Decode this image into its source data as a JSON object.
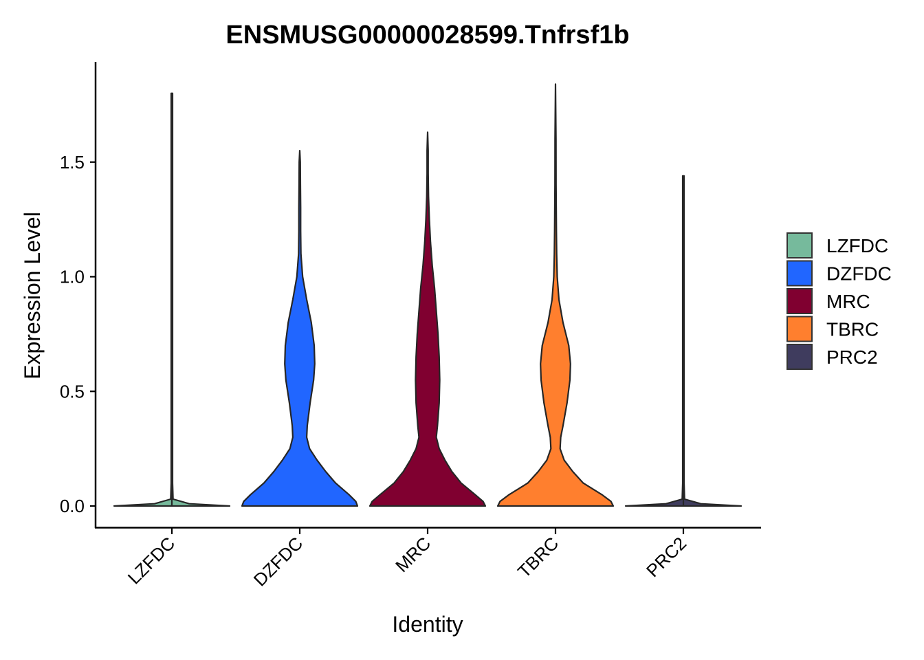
{
  "chart_data": {
    "type": "violin",
    "title": "ENSMUSG00000028599.Tnfrsf1b",
    "xlabel": "Identity",
    "ylabel": "Expression Level",
    "ylim": [
      -0.08,
      1.94
    ],
    "yticks": [
      0.0,
      0.5,
      1.0,
      1.5
    ],
    "ytick_labels": [
      "0.0",
      "0.5",
      "1.0",
      "1.5"
    ],
    "grid": false,
    "legend_position": "right",
    "categories": [
      "LZFDC",
      "DZFDC",
      "MRC",
      "TBRC",
      "PRC2"
    ],
    "series": [
      {
        "name": "LZFDC",
        "color": "#76BA9C",
        "max": 1.8,
        "profile": [
          [
            0.0,
            1.0
          ],
          [
            0.01,
            0.3
          ],
          [
            0.03,
            0.02
          ],
          [
            0.1,
            0.012
          ],
          [
            0.5,
            0.012
          ],
          [
            1.0,
            0.012
          ],
          [
            1.8,
            0.012
          ]
        ]
      },
      {
        "name": "DZFDC",
        "color": "#2166FF",
        "max": 1.55,
        "profile": [
          [
            0.0,
            1.0
          ],
          [
            0.02,
            0.97
          ],
          [
            0.05,
            0.85
          ],
          [
            0.1,
            0.62
          ],
          [
            0.15,
            0.45
          ],
          [
            0.2,
            0.3
          ],
          [
            0.25,
            0.17
          ],
          [
            0.3,
            0.12
          ],
          [
            0.35,
            0.13
          ],
          [
            0.45,
            0.18
          ],
          [
            0.55,
            0.24
          ],
          [
            0.62,
            0.26
          ],
          [
            0.7,
            0.25
          ],
          [
            0.8,
            0.2
          ],
          [
            0.9,
            0.12
          ],
          [
            1.0,
            0.05
          ],
          [
            1.1,
            0.02
          ],
          [
            1.2,
            0.015
          ],
          [
            1.3,
            0.015
          ],
          [
            1.4,
            0.012
          ],
          [
            1.5,
            0.01
          ],
          [
            1.55,
            0.0
          ]
        ]
      },
      {
        "name": "MRC",
        "color": "#800030",
        "max": 1.63,
        "profile": [
          [
            0.0,
            1.0
          ],
          [
            0.02,
            0.96
          ],
          [
            0.05,
            0.82
          ],
          [
            0.1,
            0.58
          ],
          [
            0.15,
            0.42
          ],
          [
            0.2,
            0.3
          ],
          [
            0.25,
            0.2
          ],
          [
            0.3,
            0.15
          ],
          [
            0.35,
            0.17
          ],
          [
            0.45,
            0.2
          ],
          [
            0.55,
            0.21
          ],
          [
            0.65,
            0.2
          ],
          [
            0.75,
            0.18
          ],
          [
            0.85,
            0.15
          ],
          [
            0.95,
            0.12
          ],
          [
            1.05,
            0.08
          ],
          [
            1.15,
            0.05
          ],
          [
            1.25,
            0.03
          ],
          [
            1.35,
            0.015
          ],
          [
            1.45,
            0.01
          ],
          [
            1.55,
            0.01
          ],
          [
            1.63,
            0.0
          ]
        ]
      },
      {
        "name": "TBRC",
        "color": "#FF7F2E",
        "max": 1.84,
        "profile": [
          [
            0.0,
            1.0
          ],
          [
            0.02,
            0.96
          ],
          [
            0.05,
            0.8
          ],
          [
            0.1,
            0.48
          ],
          [
            0.15,
            0.3
          ],
          [
            0.2,
            0.15
          ],
          [
            0.25,
            0.08
          ],
          [
            0.3,
            0.09
          ],
          [
            0.35,
            0.13
          ],
          [
            0.45,
            0.2
          ],
          [
            0.55,
            0.25
          ],
          [
            0.62,
            0.26
          ],
          [
            0.7,
            0.23
          ],
          [
            0.8,
            0.13
          ],
          [
            0.9,
            0.06
          ],
          [
            1.0,
            0.03
          ],
          [
            1.1,
            0.02
          ],
          [
            1.2,
            0.015
          ],
          [
            1.4,
            0.01
          ],
          [
            1.6,
            0.008
          ],
          [
            1.84,
            0.0
          ]
        ]
      },
      {
        "name": "PRC2",
        "color": "#3F3C5E",
        "max": 1.44,
        "profile": [
          [
            0.0,
            1.0
          ],
          [
            0.01,
            0.3
          ],
          [
            0.03,
            0.02
          ],
          [
            0.1,
            0.012
          ],
          [
            0.5,
            0.012
          ],
          [
            1.0,
            0.012
          ],
          [
            1.44,
            0.012
          ]
        ]
      }
    ]
  }
}
